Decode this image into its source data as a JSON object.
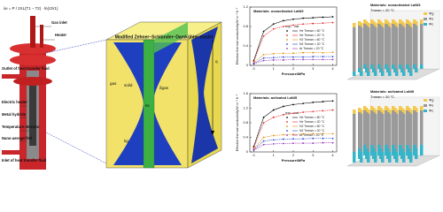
{
  "device": {
    "formula": "λe = P / 2πL(T1 − T2) · ln(r2/r1)",
    "labels": [
      "Gas inlet",
      "Heater",
      "Outlet of heat transfer fluid",
      "Electric heater",
      "Metal hydride",
      "Temperature detector",
      "Nano-aerogel felt",
      "Inlet of heat transfer fluid"
    ]
  },
  "model": {
    "title": "Modified Zehner–Schlünder–Damköhler model",
    "solid": "solid",
    "gas": "gas",
    "delta": "δgas",
    "q": "q",
    "ks": "ks",
    "kg": "kg"
  },
  "chart_data": [
    {
      "type": "line",
      "title": "Materials: nonactivated LaNi5",
      "xlabel": "Pressure/MPa",
      "ylabel": "Effective thermal conductivity/W m⁻¹ K⁻¹",
      "legend_header": [
        "exp.",
        "cal."
      ],
      "x": [
        0,
        0.5,
        1,
        1.5,
        2,
        2.5,
        3,
        3.5,
        4
      ],
      "xlim": [
        -0.2,
        4.2
      ],
      "xticks": [
        0,
        1,
        2,
        3,
        4
      ],
      "ylim": [
        0,
        1.2
      ],
      "yticks": [
        0,
        0.4,
        0.8,
        1.2
      ],
      "series": [
        {
          "name": "He Tmean = 60 °C",
          "color": "#000000",
          "values": [
            0.1,
            0.7,
            0.85,
            0.92,
            0.95,
            0.97,
            0.98,
            0.99,
            1.0
          ]
        },
        {
          "name": "He Tmean = 20 °C",
          "color": "#e02020",
          "values": [
            0.08,
            0.6,
            0.75,
            0.8,
            0.83,
            0.85,
            0.86,
            0.87,
            0.88
          ]
        },
        {
          "name": "H2 Tmean = 60 °C",
          "color": "#e08a00",
          "values": [
            0.05,
            0.22,
            0.24,
            0.25,
            0.25,
            0.26,
            0.26,
            0.26,
            0.27
          ]
        },
        {
          "name": "N2 Tmean = 20 °C",
          "color": "#2040d0",
          "values": [
            0.04,
            0.15,
            0.16,
            0.17,
            0.17,
            0.17,
            0.18,
            0.18,
            0.18
          ]
        },
        {
          "name": "Ar Tmean = 20 °C",
          "color": "#9030b0",
          "values": [
            0.03,
            0.1,
            0.11,
            0.11,
            0.12,
            0.12,
            0.12,
            0.12,
            0.12
          ]
        }
      ]
    },
    {
      "type": "line",
      "title": "Materials: activated LaNi5",
      "xlabel": "Pressure/MPa",
      "ylabel": "Effective thermal conductivity/W m⁻¹ K⁻¹",
      "legend_header": [
        "exp.",
        "cal."
      ],
      "x": [
        0,
        0.5,
        1,
        1.5,
        2,
        2.5,
        3,
        3.5,
        4
      ],
      "xlim": [
        -0.2,
        4.2
      ],
      "xticks": [
        0,
        1,
        2,
        3,
        4
      ],
      "ylim": [
        0,
        1.6
      ],
      "yticks": [
        0,
        0.4,
        0.8,
        1.2,
        1.6
      ],
      "series": [
        {
          "name": "He Tmean = 60 °C",
          "color": "#000000",
          "values": [
            0.15,
            0.95,
            1.15,
            1.25,
            1.3,
            1.33,
            1.36,
            1.38,
            1.4
          ]
        },
        {
          "name": "He Tmean = 20 °C",
          "color": "#e02020",
          "values": [
            0.12,
            0.8,
            0.95,
            1.02,
            1.06,
            1.09,
            1.11,
            1.13,
            1.15
          ]
        },
        {
          "name": "H2 Tmean = 60 °C",
          "color": "#e08a00",
          "values": [
            0.08,
            0.4,
            0.45,
            0.47,
            0.48,
            0.49,
            0.5,
            0.5,
            0.5
          ]
        },
        {
          "name": "N2 Tmean = 20 °C",
          "color": "#2040d0",
          "values": [
            0.06,
            0.3,
            0.33,
            0.35,
            0.36,
            0.36,
            0.37,
            0.37,
            0.37
          ]
        },
        {
          "name": "Ar Tmean = 20 °C",
          "color": "#9030b0",
          "values": [
            0.05,
            0.2,
            0.22,
            0.23,
            0.24,
            0.24,
            0.24,
            0.25,
            0.25
          ]
        }
      ]
    }
  ],
  "bar_panels": [
    {
      "title": "Materials: nonactivated LaNi5",
      "subtitle": "Tmean = 20 °C",
      "legend": [
        "Φg",
        "Φs",
        "Φc"
      ]
    },
    {
      "title": "Materials: activated LaNi5",
      "subtitle": "Tmean = 20 °C",
      "legend": [
        "Φg",
        "Φs",
        "Φc"
      ]
    }
  ]
}
